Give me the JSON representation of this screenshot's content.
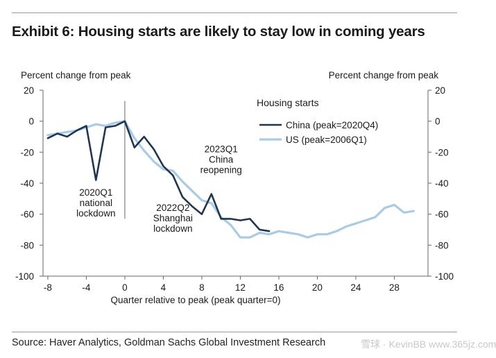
{
  "exhibit_title": "Exhibit 6: Housing starts are likely to stay low in coming years",
  "source": "Source: Haver Analytics, Goldman Sachs Global Investment Research",
  "watermark": "雪球 · KevinBB  www.365jz.com",
  "colors": {
    "china": "#1f3554",
    "us": "#a9cbe3",
    "axis": "#666666",
    "text": "#1a1a1a"
  },
  "chart_data": {
    "type": "line",
    "title": "",
    "xlabel": "Quarter relative to peak (peak quarter=0)",
    "ylabel_left": "Percent change from peak",
    "ylabel_right": "Percent change from peak",
    "xlim": [
      -8.5,
      31.5
    ],
    "ylim": [
      -100,
      20
    ],
    "x_ticks": [
      -8,
      -4,
      0,
      4,
      8,
      12,
      16,
      20,
      24,
      28
    ],
    "y_ticks": [
      20,
      0,
      -20,
      -40,
      -60,
      -80,
      -100
    ],
    "grid": false,
    "legend": {
      "title": "Housing starts",
      "position": "top-right"
    },
    "series": [
      {
        "name": "China (peak=2020Q4)",
        "x": [
          -8,
          -7,
          -6,
          -5,
          -4,
          -3,
          -2,
          -1,
          0,
          1,
          2,
          3,
          4,
          5,
          6,
          7,
          8,
          9,
          10,
          11,
          12,
          13,
          14,
          15
        ],
        "values": [
          -11,
          -8,
          -10,
          -6,
          -3,
          -38,
          -4,
          -3,
          0,
          -17,
          -10,
          -18,
          -29,
          -35,
          -49,
          -55,
          -60,
          -47,
          -63,
          -63,
          -64,
          -63,
          -70,
          -71
        ]
      },
      {
        "name": "US (peak=2006Q1)",
        "x": [
          -8,
          -7,
          -6,
          -5,
          -4,
          -3,
          -2,
          -1,
          0,
          1,
          2,
          3,
          4,
          5,
          6,
          7,
          8,
          9,
          10,
          11,
          12,
          13,
          14,
          15,
          16,
          17,
          18,
          19,
          20,
          21,
          22,
          23,
          24,
          25,
          26,
          27,
          28,
          29,
          30
        ],
        "values": [
          -9,
          -8,
          -7,
          -6,
          -4,
          -2,
          -3,
          -1,
          0,
          -11,
          -19,
          -26,
          -31,
          -32,
          -39,
          -45,
          -51,
          -53,
          -62,
          -67,
          -75,
          -75,
          -72,
          -73,
          -71,
          -72,
          -73,
          -75,
          -73,
          -73,
          -71,
          -68,
          -66,
          -64,
          -62,
          -56,
          -54,
          -59,
          -58
        ]
      }
    ],
    "vertical_reference_line_x": 0,
    "annotations": [
      {
        "id": "lockdown",
        "lines": [
          "2020Q1",
          "national",
          "lockdown"
        ],
        "x": -3,
        "y": -48
      },
      {
        "id": "shanghai",
        "lines": [
          "2022Q2",
          "Shanghai",
          "lockdown"
        ],
        "x": 5,
        "y": -58
      },
      {
        "id": "reopening",
        "lines": [
          "2023Q1",
          "China",
          "reopening"
        ],
        "x": 10,
        "y": -20
      }
    ]
  }
}
